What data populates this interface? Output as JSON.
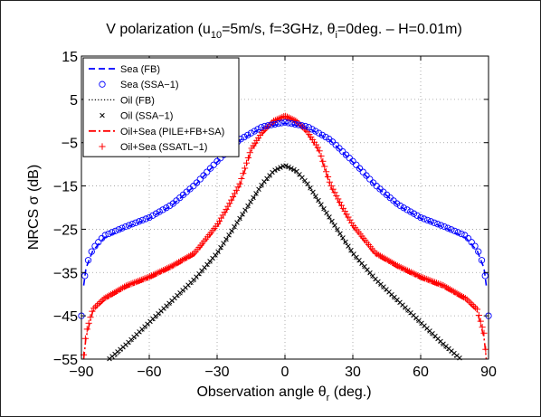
{
  "chart_data": {
    "type": "line",
    "title": "V polarization (u10=5m/s, f=3GHz, θi=0deg. – H=0.01m)",
    "title_parts": {
      "a": "V polarization (u",
      "a_sub": "10",
      "b": "=5m/s, f=3GHz, θ",
      "b_sub": "i",
      "c": "=0deg. – H=0.01m)"
    },
    "xlabel": "Observation angle θr (deg.)",
    "xlabel_parts": {
      "a": "Observation angle θ",
      "sub": "r",
      "b": " (deg.)"
    },
    "ylabel": "NRCS σ (dB)",
    "xlim": [
      -90,
      90
    ],
    "ylim": [
      -55,
      15
    ],
    "xticks": [
      -90,
      -60,
      -30,
      0,
      30,
      60,
      90
    ],
    "yticks": [
      15,
      5,
      -5,
      -15,
      -25,
      -35,
      -45,
      -55
    ],
    "xtick_labels": [
      "−90",
      "−60",
      "−30",
      "0",
      "30",
      "60",
      "90"
    ],
    "ytick_labels": [
      "15",
      "5",
      "−5",
      "−15",
      "−25",
      "−35",
      "−45",
      "−55"
    ],
    "grid": true,
    "legend_position": "top-left",
    "series": [
      {
        "name": "Sea (FB)",
        "color": "#0000ff",
        "style": "dashed",
        "x": [
          0,
          10,
          20,
          30,
          40,
          50,
          60,
          70,
          80,
          85,
          88,
          89
        ],
        "y": [
          -0.5,
          -1.5,
          -4.5,
          -9.5,
          -15,
          -19.5,
          -22.5,
          -24.5,
          -27,
          -30,
          -34,
          -38
        ]
      },
      {
        "name": "Sea (SSA−1)",
        "color": "#0000ff",
        "style": "circle",
        "x": [
          0,
          10,
          20,
          30,
          40,
          50,
          60,
          70,
          80,
          85,
          88,
          89,
          90
        ],
        "y": [
          -0.3,
          -1.3,
          -4.3,
          -9.3,
          -14.8,
          -19.3,
          -22.3,
          -24.3,
          -26.5,
          -29.5,
          -33.5,
          -38,
          -45
        ]
      },
      {
        "name": "Oil (FB)",
        "color": "#000000",
        "style": "dotted",
        "x": [
          0,
          5,
          10,
          20,
          30,
          40,
          50,
          60,
          70,
          80
        ],
        "y": [
          -10.5,
          -12,
          -15,
          -23,
          -31,
          -37,
          -42,
          -47,
          -52,
          -57
        ]
      },
      {
        "name": "Oil (SSA−1)",
        "color": "#000000",
        "style": "x",
        "x": [
          0,
          5,
          10,
          20,
          30,
          40,
          50,
          60,
          70,
          80
        ],
        "y": [
          -10.2,
          -11.5,
          -14.5,
          -22.5,
          -30.5,
          -36.5,
          -41.5,
          -46.5,
          -51.5,
          -56
        ]
      },
      {
        "name": "Oil+Sea (PILE+FB+SA)",
        "color": "#ff0000",
        "style": "dashdot",
        "x": [
          0,
          5,
          10,
          15,
          20,
          25,
          30,
          40,
          50,
          60,
          70,
          80,
          85,
          88,
          89
        ],
        "y": [
          0.5,
          -0.5,
          -3,
          -7,
          -15,
          -20,
          -24.5,
          -31,
          -34,
          -36.5,
          -38.5,
          -41.5,
          -44,
          -50,
          -55
        ]
      },
      {
        "name": "Oil+Sea (SSATL−1)",
        "color": "#ff0000",
        "style": "plus",
        "x": [
          0,
          5,
          10,
          15,
          20,
          25,
          30,
          40,
          50,
          60,
          70,
          80,
          85,
          88,
          89
        ],
        "y": [
          1.2,
          0,
          -2.5,
          -6.5,
          -14.5,
          -19.5,
          -24,
          -30.5,
          -33.5,
          -36,
          -38,
          -41,
          -43.5,
          -49,
          -54
        ]
      }
    ]
  }
}
